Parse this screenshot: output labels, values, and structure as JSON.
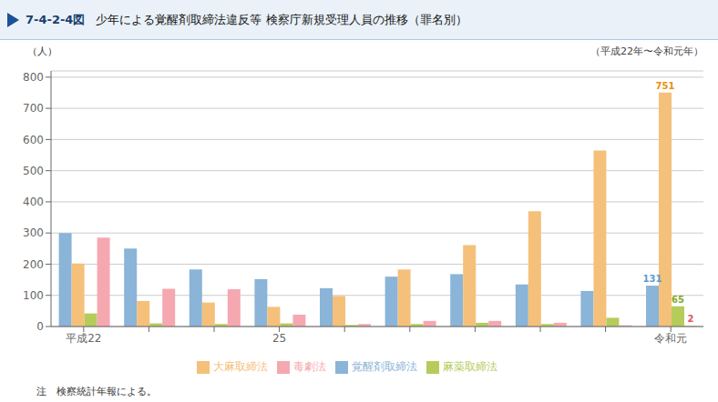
{
  "chart_data": {
    "type": "bar",
    "title": "7-4-2-4図 少年による覚醒剤取締法違反等 検察庁新規受理人員の推移（罪名別）",
    "subtitle": "（平成22年〜令和元年）",
    "ylabel": "（人）",
    "note": "注　検察統計年報による。",
    "categories": [
      "平成22",
      null,
      null,
      "25",
      null,
      null,
      null,
      null,
      null,
      "令和元"
    ],
    "series": [
      {
        "name": "覚醒剤取締法",
        "color": "#8ab4d8",
        "values": [
          300,
          250,
          183,
          152,
          123,
          160,
          168,
          135,
          114,
          131
        ]
      },
      {
        "name": "大麻取締法",
        "color": "#f5c07a",
        "values": [
          202,
          82,
          77,
          63,
          98,
          183,
          261,
          370,
          565,
          751
        ]
      },
      {
        "name": "麻薬取締法",
        "color": "#b5cc5a",
        "values": [
          42,
          10,
          8,
          10,
          5,
          8,
          12,
          8,
          28,
          65
        ]
      },
      {
        "name": "毒劇法",
        "color": "#f5a8b0",
        "values": [
          285,
          121,
          120,
          38,
          8,
          18,
          18,
          12,
          4,
          2
        ]
      }
    ],
    "annotations": [
      {
        "value": 131,
        "series": "覚醒剤取締法",
        "category": "令和元",
        "color": "#5b9bd5"
      },
      {
        "value": 751,
        "series": "大麻取締法",
        "category": "令和元",
        "color": "#e89010"
      },
      {
        "value": 65,
        "series": "麻薬取締法",
        "category": "令和元",
        "color": "#80aa20"
      },
      {
        "value": 2,
        "series": "毒劇法",
        "category": "令和元",
        "color": "#e85060"
      }
    ],
    "ylim": [
      0,
      820
    ],
    "yticks": [
      0,
      100,
      200,
      300,
      400,
      500,
      600,
      700,
      800
    ],
    "grid": true,
    "legend": "bottom"
  }
}
